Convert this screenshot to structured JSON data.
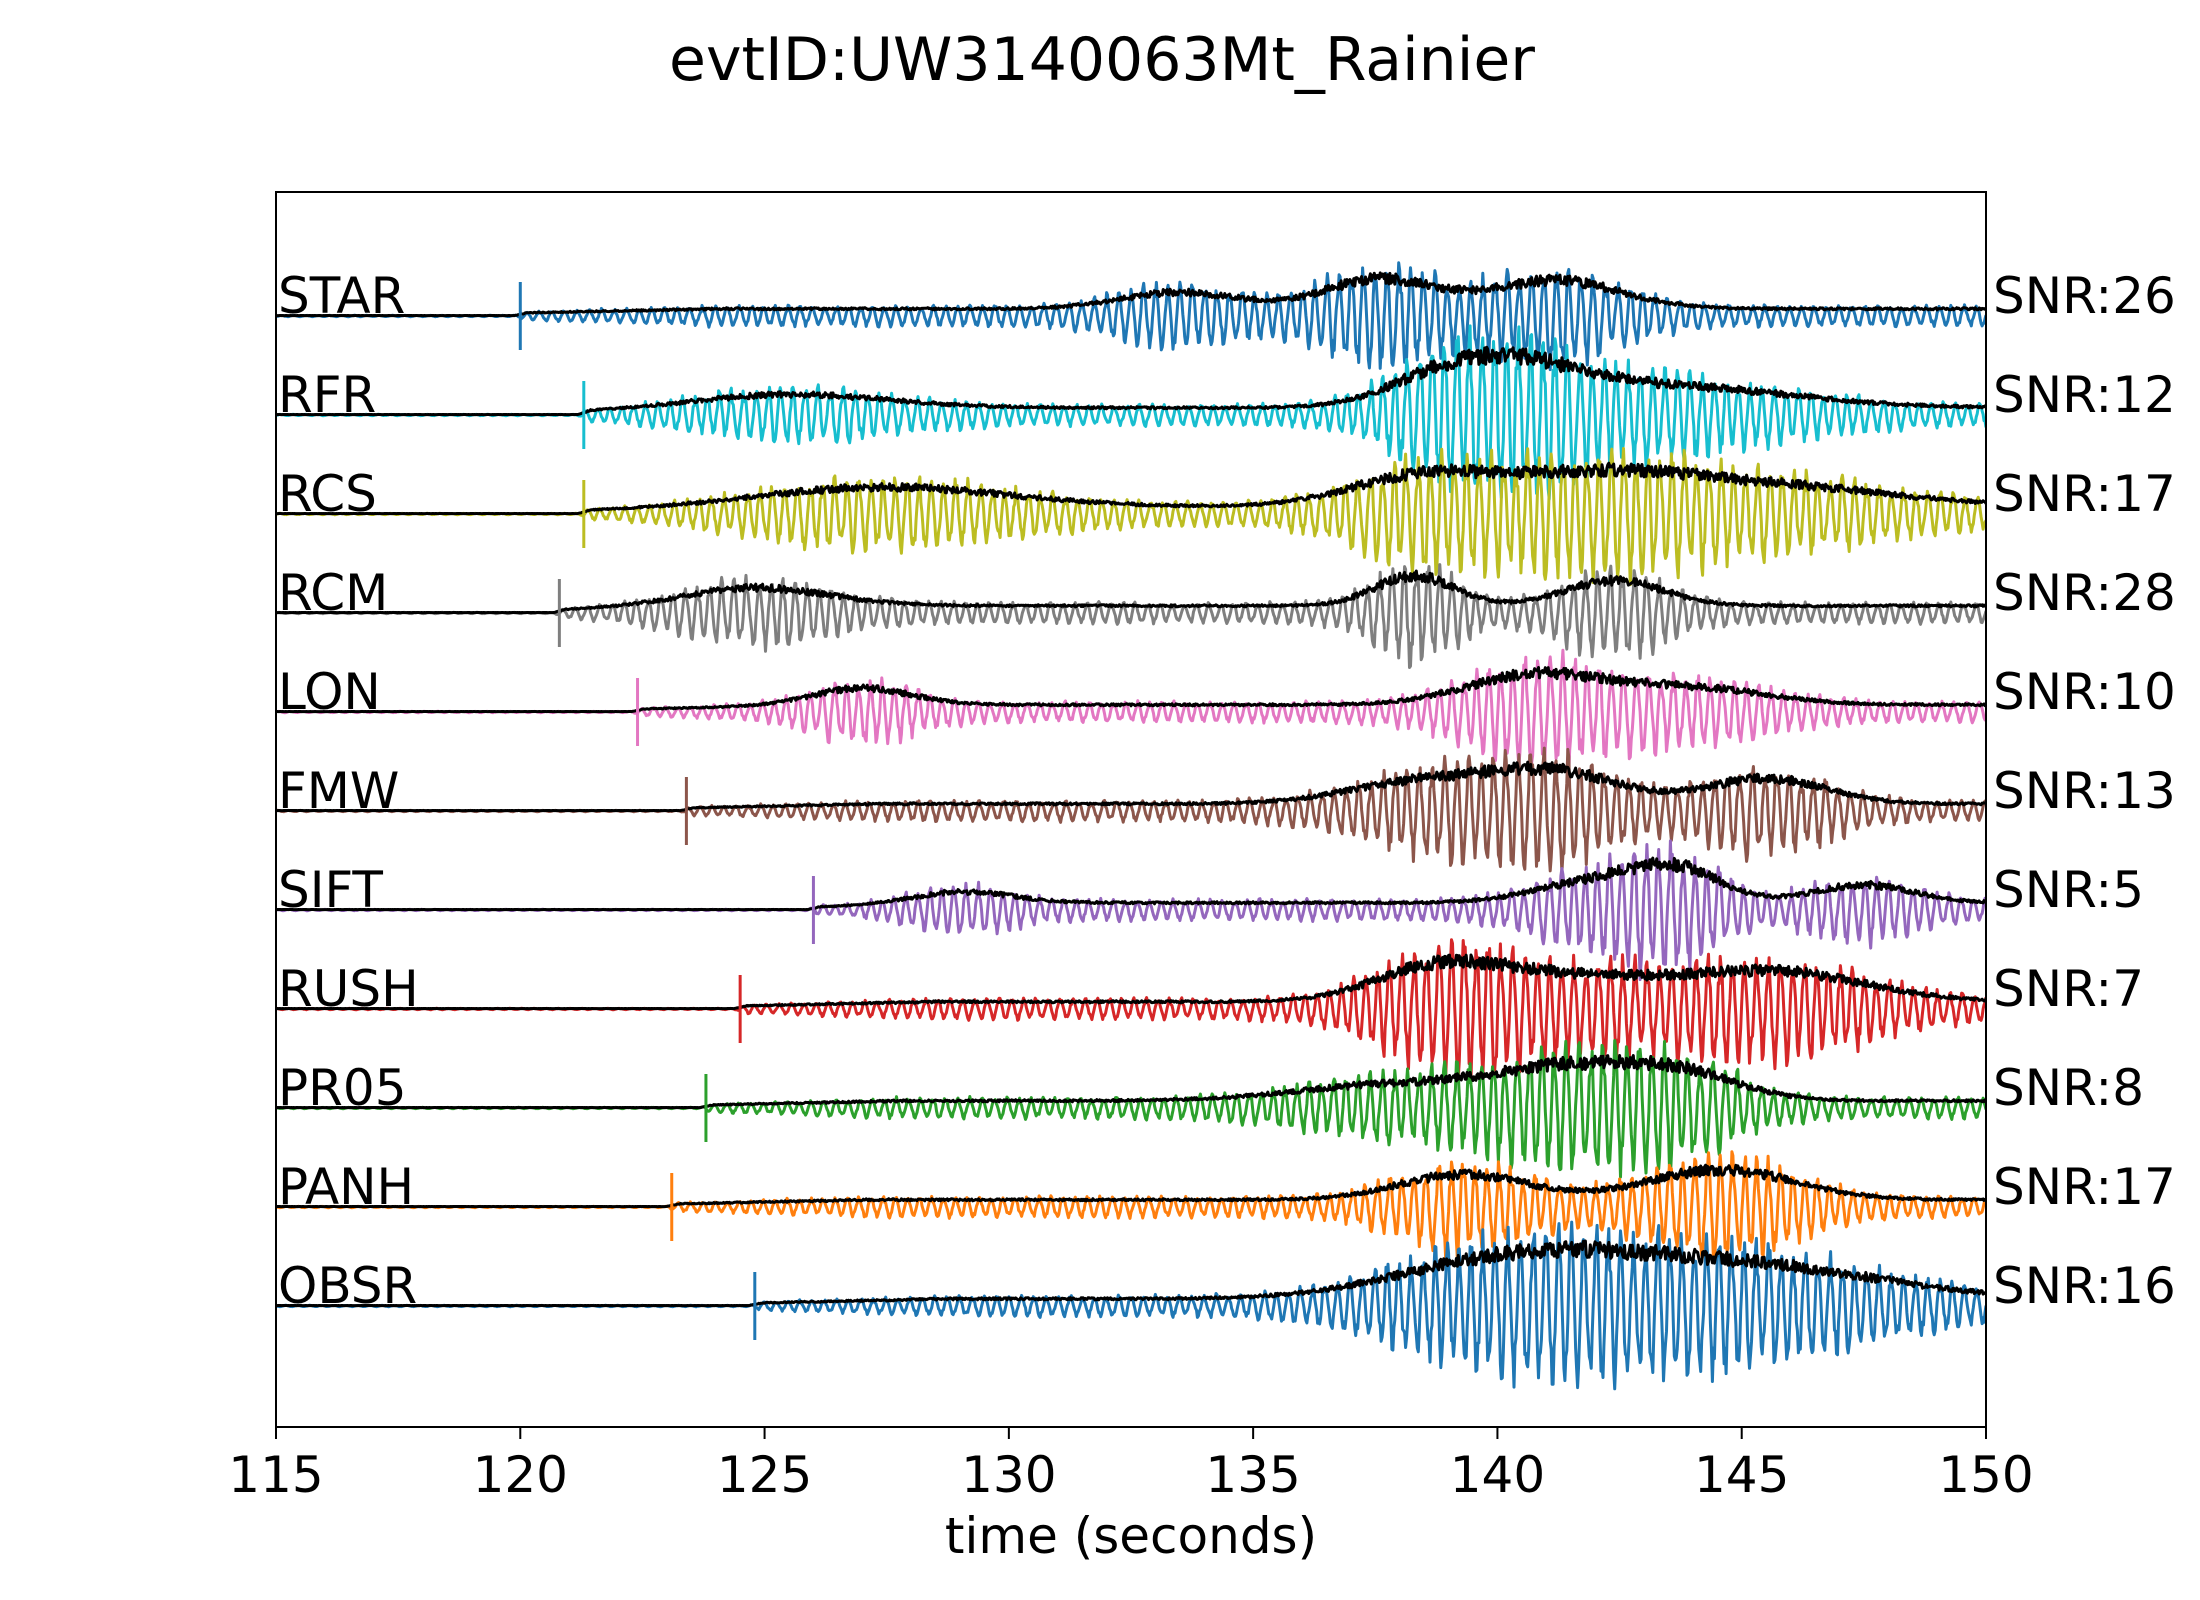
{
  "chart_data": {
    "type": "line",
    "title": "evtID:UW3140063Mt_Rainier",
    "xlabel": "time (seconds)",
    "ylabel": "",
    "xlim": [
      115,
      150
    ],
    "xticks": [
      {
        "value": 115,
        "label": "115"
      },
      {
        "value": 120,
        "label": "120"
      },
      {
        "value": 125,
        "label": "125"
      },
      {
        "value": 130,
        "label": "130"
      },
      {
        "value": 135,
        "label": "135"
      },
      {
        "value": 140,
        "label": "140"
      },
      {
        "value": 145,
        "label": "145"
      },
      {
        "value": 150,
        "label": "150"
      }
    ],
    "grid": false,
    "legend": "none",
    "envelope_color": "#000000",
    "series": [
      {
        "name": "STAR",
        "snr_label": "SNR:26",
        "pick_time": 120.0,
        "color": "#1f77b4",
        "bursts": [
          [
            133.5,
            1.2,
            0.55
          ],
          [
            137.6,
            1.1,
            1.0
          ],
          [
            141.2,
            1.3,
            0.95
          ]
        ]
      },
      {
        "name": "RFR",
        "snr_label": "SNR:12",
        "pick_time": 121.3,
        "color": "#17becf",
        "bursts": [
          [
            125.5,
            2.0,
            0.45
          ],
          [
            139.0,
            1.2,
            1.0
          ],
          [
            140.7,
            1.3,
            0.9
          ],
          [
            143.5,
            2.5,
            0.7
          ]
        ]
      },
      {
        "name": "RCS",
        "snr_label": "SNR:17",
        "pick_time": 121.3,
        "color": "#bcbd22",
        "bursts": [
          [
            127.5,
            2.5,
            0.65
          ],
          [
            138.5,
            1.5,
            1.0
          ],
          [
            142.0,
            1.8,
            0.9
          ],
          [
            145.5,
            2.5,
            0.7
          ]
        ]
      },
      {
        "name": "RCM",
        "snr_label": "SNR:28",
        "pick_time": 120.8,
        "color": "#7f7f7f",
        "bursts": [
          [
            124.8,
            1.5,
            0.6
          ],
          [
            138.3,
            0.8,
            1.0
          ],
          [
            142.4,
            1.0,
            0.85
          ]
        ]
      },
      {
        "name": "LON",
        "snr_label": "SNR:10",
        "pick_time": 122.4,
        "color": "#e377c2",
        "bursts": [
          [
            127.0,
            1.0,
            0.55
          ],
          [
            140.8,
            1.4,
            1.0
          ],
          [
            144.0,
            1.5,
            0.55
          ]
        ]
      },
      {
        "name": "FMW",
        "snr_label": "SNR:13",
        "pick_time": 123.4,
        "color": "#8c564b",
        "bursts": [
          [
            138.5,
            1.5,
            0.75
          ],
          [
            141.2,
            1.3,
            1.0
          ],
          [
            145.5,
            1.2,
            0.85
          ]
        ]
      },
      {
        "name": "SIFT",
        "snr_label": "SNR:5",
        "pick_time": 126.0,
        "color": "#9467bd",
        "bursts": [
          [
            129.0,
            1.0,
            0.4
          ],
          [
            142.0,
            1.2,
            0.7
          ],
          [
            143.7,
            0.9,
            1.0
          ],
          [
            147.5,
            1.0,
            0.6
          ]
        ]
      },
      {
        "name": "RUSH",
        "snr_label": "SNR:7",
        "pick_time": 124.5,
        "color": "#d62728",
        "bursts": [
          [
            138.8,
            1.3,
            1.0
          ],
          [
            141.5,
            2.0,
            0.8
          ],
          [
            145.8,
            1.8,
            0.95
          ]
        ]
      },
      {
        "name": "PR05",
        "snr_label": "SNR:8",
        "pick_time": 123.8,
        "color": "#2ca02c",
        "bursts": [
          [
            138.0,
            2.0,
            0.55
          ],
          [
            141.5,
            1.5,
            1.0
          ],
          [
            143.8,
            1.2,
            0.8
          ]
        ]
      },
      {
        "name": "PANH",
        "snr_label": "SNR:17",
        "pick_time": 123.1,
        "color": "#ff7f0e",
        "bursts": [
          [
            139.3,
            1.3,
            0.85
          ],
          [
            144.6,
            1.5,
            1.0
          ]
        ]
      },
      {
        "name": "OBSR",
        "snr_label": "SNR:16",
        "pick_time": 124.8,
        "color": "#1f77b4",
        "bursts": [
          [
            139.5,
            2.0,
            0.9
          ],
          [
            142.0,
            2.0,
            0.85
          ],
          [
            145.5,
            2.5,
            1.0
          ]
        ]
      }
    ]
  }
}
